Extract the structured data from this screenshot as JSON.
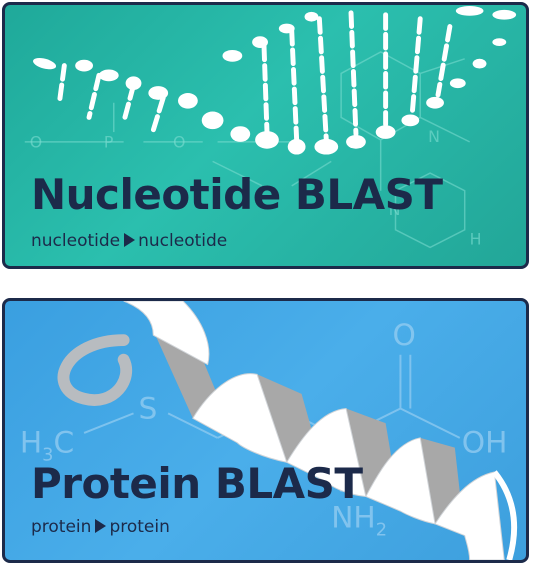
{
  "cards": {
    "nucleotide": {
      "title": "Nucleotide BLAST",
      "query_type": "nucleotide",
      "database_type": "nucleotide",
      "arrow_icon": "triangle-right-icon"
    },
    "protein": {
      "title": "Protein BLAST",
      "query_type": "protein",
      "database_type": "protein",
      "arrow_icon": "triangle-right-icon"
    }
  },
  "colors": {
    "nucleotide_background": "#22b3a3",
    "protein_background": "#45a8e6",
    "text": "#1c2a4a",
    "border": "#1c2a4a"
  }
}
